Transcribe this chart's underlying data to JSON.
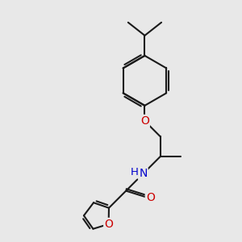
{
  "background_color": "#e8e8e8",
  "bond_color": "#1a1a1a",
  "bond_width": 1.5,
  "atom_colors": {
    "O": "#cc0000",
    "N": "#0000cc",
    "C": "#1a1a1a",
    "H": "#1a1a1a"
  },
  "figsize": [
    3.0,
    3.0
  ],
  "dpi": 100
}
